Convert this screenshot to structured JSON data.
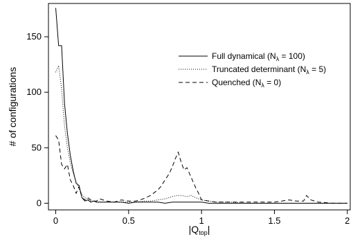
{
  "chart_data": {
    "type": "line",
    "title": "",
    "xlabel": {
      "main": "|Q",
      "sub": "top",
      "tail": "|"
    },
    "ylabel": "# of configurations",
    "xlim": [
      -0.05,
      2.02
    ],
    "ylim": [
      -6,
      180
    ],
    "xticks": [
      0,
      0.5,
      1,
      1.5,
      2
    ],
    "xtick_labels": [
      "0",
      "0.5",
      "1",
      "1.5",
      "2"
    ],
    "yticks": [
      0,
      50,
      100,
      150
    ],
    "ytick_labels": [
      "0",
      "50",
      "100",
      "150"
    ],
    "legend_position": "upper-right",
    "series": [
      {
        "name": "Full dynamical (Nλ = 100)",
        "legend": {
          "pre": "Full dynamical (N",
          "sub": "λ",
          "post": " = 100)"
        },
        "dash": "solid",
        "x": [
          0.0,
          0.02,
          0.04,
          0.06,
          0.08,
          0.1,
          0.12,
          0.14,
          0.16,
          0.18,
          0.2,
          0.22,
          0.24,
          0.26,
          0.28,
          0.3,
          0.35,
          0.4,
          0.45,
          0.5,
          0.55,
          0.6,
          0.65,
          0.7,
          0.75,
          0.8,
          0.85,
          0.9,
          0.95,
          1.0,
          1.05,
          1.1,
          1.2,
          1.3,
          1.4,
          1.5,
          1.6,
          1.7,
          1.8,
          1.9,
          2.0
        ],
        "y": [
          176,
          142,
          142,
          90,
          63,
          43,
          29,
          18,
          16,
          5,
          2,
          3,
          1,
          2,
          1,
          1,
          1,
          1,
          1,
          0,
          1,
          1,
          1,
          1,
          0,
          1,
          1,
          1,
          1,
          1,
          0,
          0,
          0,
          0,
          0,
          0,
          0,
          0,
          0,
          0,
          0
        ]
      },
      {
        "name": "Truncated determinant (Nλ = 5)",
        "legend": {
          "pre": "Truncated determinant (N",
          "sub": "λ",
          "post": " = 5)"
        },
        "dash": "dotted",
        "x": [
          0.0,
          0.02,
          0.04,
          0.06,
          0.08,
          0.1,
          0.12,
          0.14,
          0.16,
          0.18,
          0.2,
          0.22,
          0.24,
          0.26,
          0.28,
          0.3,
          0.35,
          0.4,
          0.45,
          0.5,
          0.55,
          0.6,
          0.65,
          0.7,
          0.75,
          0.8,
          0.83,
          0.86,
          0.9,
          0.93,
          0.96,
          1.0,
          1.05,
          1.1,
          1.2,
          1.3,
          1.4,
          1.5,
          1.6,
          1.7,
          1.8,
          1.9,
          2.0
        ],
        "y": [
          118,
          124,
          103,
          70,
          50,
          36,
          27,
          19,
          13,
          8,
          5,
          4,
          2,
          2,
          1,
          1,
          1,
          1,
          1,
          1,
          1,
          2,
          2,
          3,
          4,
          6,
          7,
          7,
          6,
          7,
          5,
          3,
          2,
          1,
          1,
          0,
          0,
          0,
          0,
          0,
          0,
          0,
          0
        ]
      },
      {
        "name": "Quenched (Nλ = 0)",
        "legend": {
          "pre": "Quenched (N",
          "sub": "λ",
          "post": " = 0)"
        },
        "dash": "dashed",
        "x": [
          0.0,
          0.02,
          0.04,
          0.06,
          0.08,
          0.1,
          0.12,
          0.14,
          0.16,
          0.18,
          0.2,
          0.22,
          0.24,
          0.26,
          0.28,
          0.3,
          0.35,
          0.4,
          0.45,
          0.5,
          0.55,
          0.6,
          0.65,
          0.7,
          0.72,
          0.75,
          0.78,
          0.8,
          0.82,
          0.84,
          0.86,
          0.88,
          0.9,
          0.92,
          0.94,
          0.96,
          0.98,
          1.0,
          1.05,
          1.1,
          1.2,
          1.3,
          1.4,
          1.5,
          1.55,
          1.6,
          1.65,
          1.7,
          1.72,
          1.75,
          1.8,
          1.9,
          2.0
        ],
        "y": [
          61,
          57,
          35,
          31,
          35,
          21,
          16,
          9,
          15,
          5,
          3,
          5,
          3,
          2,
          2,
          4,
          2,
          1,
          3,
          2,
          2,
          4,
          7,
          12,
          15,
          21,
          27,
          33,
          40,
          46,
          37,
          30,
          32,
          26,
          20,
          14,
          9,
          3,
          2,
          1,
          1,
          1,
          1,
          1,
          2,
          3,
          2,
          2,
          7,
          3,
          1,
          0,
          0
        ]
      }
    ]
  }
}
